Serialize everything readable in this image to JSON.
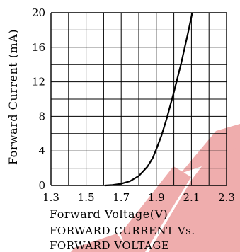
{
  "chart_data": {
    "type": "line",
    "title": "",
    "caption_lines": [
      "FORWARD CURRENT Vs.",
      "FORWARD VOLTAGE"
    ],
    "xlabel": "Forward Voltage(V)",
    "ylabel": "Forward Current (mA)",
    "xlim": [
      1.3,
      2.3
    ],
    "ylim": [
      0,
      20
    ],
    "x_ticks": [
      "1.3",
      "1.5",
      "1.7",
      "1.9",
      "2.1",
      "2.3"
    ],
    "y_ticks": [
      "0",
      "4",
      "8",
      "12",
      "16",
      "20"
    ],
    "grid": true,
    "series": [
      {
        "x": [
          1.61,
          1.65,
          1.7,
          1.75,
          1.8,
          1.85,
          1.88,
          1.9,
          1.93,
          1.96,
          2.0,
          2.04,
          2.08,
          2.105
        ],
        "y": [
          0,
          0.05,
          0.2,
          0.5,
          1.1,
          2.2,
          3.2,
          4.2,
          5.8,
          7.8,
          10.8,
          14.0,
          17.6,
          20
        ],
        "color": "#000000"
      }
    ]
  }
}
